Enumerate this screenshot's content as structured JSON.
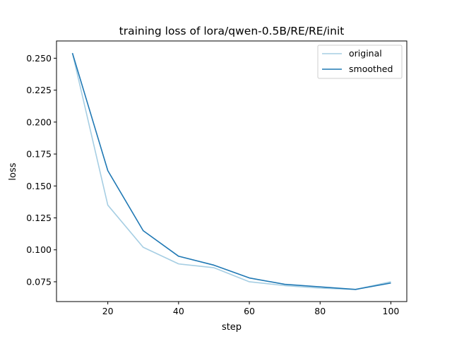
{
  "chart_data": {
    "type": "line",
    "title": "training loss of lora/qwen-0.5B/RE/RE/init",
    "xlabel": "step",
    "ylabel": "loss",
    "xlim": [
      5.5,
      104.5
    ],
    "ylim": [
      0.0595,
      0.2635
    ],
    "x_ticks": [
      20,
      40,
      60,
      80,
      100
    ],
    "y_ticks": [
      0.075,
      0.1,
      0.125,
      0.15,
      0.175,
      0.2,
      0.225,
      0.25
    ],
    "y_tick_labels": [
      "0.075",
      "0.100",
      "0.125",
      "0.150",
      "0.175",
      "0.200",
      "0.225",
      "0.250"
    ],
    "grid": false,
    "legend_position": "top-right",
    "x": [
      10,
      20,
      30,
      40,
      50,
      60,
      70,
      80,
      90,
      100
    ],
    "series": [
      {
        "name": "original",
        "color": "#a6cee3",
        "values": [
          0.254,
          0.135,
          0.102,
          0.089,
          0.086,
          0.075,
          0.072,
          0.07,
          0.069,
          0.075
        ]
      },
      {
        "name": "smoothed",
        "color": "#1f78b4",
        "values": [
          0.254,
          0.162,
          0.115,
          0.095,
          0.088,
          0.078,
          0.073,
          0.071,
          0.069,
          0.074
        ]
      }
    ]
  }
}
